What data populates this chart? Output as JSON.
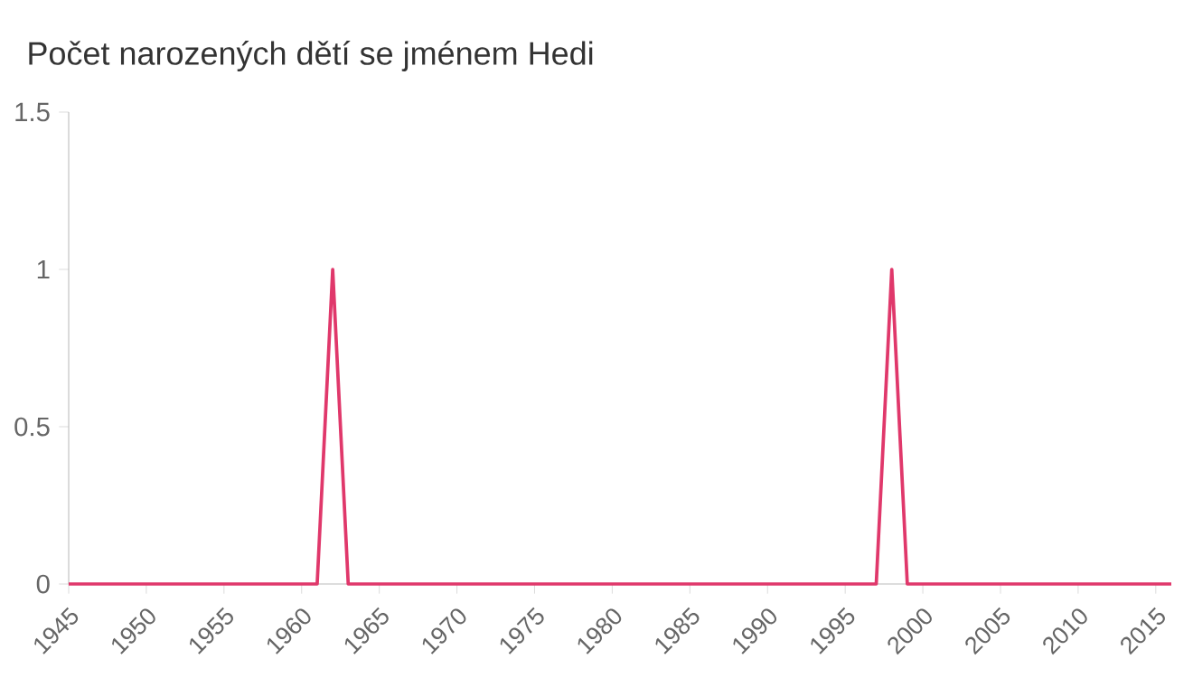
{
  "chart_data": {
    "type": "line",
    "title": "Počet narozených dětí se jménem Hedi",
    "x": [
      1945,
      1946,
      1947,
      1948,
      1949,
      1950,
      1951,
      1952,
      1953,
      1954,
      1955,
      1956,
      1957,
      1958,
      1959,
      1960,
      1961,
      1962,
      1963,
      1964,
      1965,
      1966,
      1967,
      1968,
      1969,
      1970,
      1971,
      1972,
      1973,
      1974,
      1975,
      1976,
      1977,
      1978,
      1979,
      1980,
      1981,
      1982,
      1983,
      1984,
      1985,
      1986,
      1987,
      1988,
      1989,
      1990,
      1991,
      1992,
      1993,
      1994,
      1995,
      1996,
      1997,
      1998,
      1999,
      2000,
      2001,
      2002,
      2003,
      2004,
      2005,
      2006,
      2007,
      2008,
      2009,
      2010,
      2011,
      2012,
      2013,
      2014,
      2015,
      2016
    ],
    "values": [
      0,
      0,
      0,
      0,
      0,
      0,
      0,
      0,
      0,
      0,
      0,
      0,
      0,
      0,
      0,
      0,
      0,
      1,
      0,
      0,
      0,
      0,
      0,
      0,
      0,
      0,
      0,
      0,
      0,
      0,
      0,
      0,
      0,
      0,
      0,
      0,
      0,
      0,
      0,
      0,
      0,
      0,
      0,
      0,
      0,
      0,
      0,
      0,
      0,
      0,
      0,
      0,
      0,
      1,
      0,
      0,
      0,
      0,
      0,
      0,
      0,
      0,
      0,
      0,
      0,
      0,
      0,
      0,
      0,
      0,
      0,
      0
    ],
    "color": "#e0386b",
    "xlim": [
      1945,
      2016
    ],
    "ylim": [
      0,
      1.5
    ],
    "xticks": [
      1945,
      1950,
      1955,
      1960,
      1965,
      1970,
      1975,
      1980,
      1985,
      1990,
      1995,
      2000,
      2005,
      2010,
      2015
    ],
    "yticks": [
      0,
      0.5,
      1,
      1.5
    ],
    "grid": false,
    "marker": "none",
    "line_style": "solid"
  }
}
